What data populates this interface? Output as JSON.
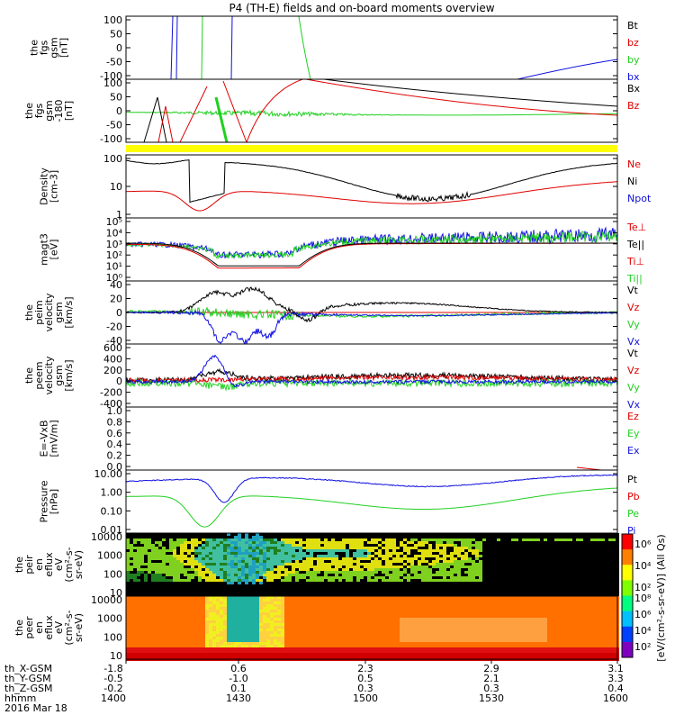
{
  "title": "P4 (TH-E) fields and on-board moments overview",
  "colors": {
    "black": "#000000",
    "red": "#e00000",
    "green": "#20d020",
    "blue": "#1010e0",
    "yellow": "#ffff00",
    "frame": "#000000"
  },
  "panels": [
    {
      "id": "fgs_gsm",
      "ylabel": [
        "the",
        "fgs",
        "gsm",
        "[nT]"
      ],
      "ticks": [
        "100",
        "50",
        "0",
        "-50",
        "-100"
      ],
      "legend": [
        {
          "text": "Bt",
          "color": "black"
        },
        {
          "text": "bz",
          "color": "red"
        },
        {
          "text": "by",
          "color": "green"
        },
        {
          "text": "bx",
          "color": "blue"
        }
      ]
    },
    {
      "id": "fgs_gsm_180",
      "ylabel": [
        "the",
        "fgs",
        "gsm",
        "-180",
        "[nT]"
      ],
      "ticks": [
        "100",
        "50",
        "0",
        "-50",
        "-100"
      ],
      "legend": [
        {
          "text": "Bx",
          "color": "black"
        },
        {
          "text": "Bz",
          "color": "red"
        }
      ]
    },
    {
      "id": "density",
      "ylabel": [
        "Density",
        "[cm-3]"
      ],
      "ticks": [
        "100",
        "10",
        "1"
      ],
      "legend": [
        {
          "text": "Ne",
          "color": "red"
        },
        {
          "text": "Ni",
          "color": "black"
        },
        {
          "text": "Npot",
          "color": "blue"
        }
      ]
    },
    {
      "id": "temp",
      "ylabel": [
        "magt3",
        "[eV]"
      ],
      "ticks": [
        "10⁵",
        "10⁴",
        "10³",
        "10²",
        "10¹",
        "10⁰"
      ],
      "legend": [
        {
          "text": "Te⊥",
          "color": "red"
        },
        {
          "text": "Te||",
          "color": "black"
        },
        {
          "text": "Ti⊥",
          "color": "red"
        },
        {
          "text": "Ti||",
          "color": "green"
        }
      ]
    },
    {
      "id": "peim_vel",
      "ylabel": [
        "the",
        "peim",
        "velocity",
        "gsm",
        "[km/s]"
      ],
      "ticks": [
        "40",
        "20",
        "0",
        "-20",
        "-40"
      ],
      "legend": [
        {
          "text": "Vt",
          "color": "black"
        },
        {
          "text": "Vz",
          "color": "red"
        },
        {
          "text": "Vy",
          "color": "green"
        },
        {
          "text": "Vx",
          "color": "blue"
        }
      ]
    },
    {
      "id": "peem_vel",
      "ylabel": [
        "the",
        "peem",
        "velocity",
        "gsm",
        "[km/s]"
      ],
      "ticks": [
        "600",
        "400",
        "200",
        "0",
        "-200",
        "-400"
      ],
      "legend": [
        {
          "text": "Vt",
          "color": "black"
        },
        {
          "text": "Vz",
          "color": "red"
        },
        {
          "text": "Vy",
          "color": "green"
        },
        {
          "text": "Vx",
          "color": "blue"
        }
      ]
    },
    {
      "id": "efield",
      "ylabel": [
        "E=-VxB",
        "[mV/m]"
      ],
      "ticks": [
        "1.0",
        "0.8",
        "0.6",
        "0.4",
        "0.2",
        "0.0"
      ],
      "legend": [
        {
          "text": "Ez",
          "color": "red"
        },
        {
          "text": "Ey",
          "color": "green"
        },
        {
          "text": "Ex",
          "color": "blue"
        }
      ]
    },
    {
      "id": "pressure",
      "ylabel": [
        "Pressure",
        "[nPa]"
      ],
      "ticks": [
        "10.00",
        "1.00",
        "0.10",
        "0.01"
      ],
      "legend": [
        {
          "text": "Pt",
          "color": "black"
        },
        {
          "text": "Pb",
          "color": "red"
        },
        {
          "text": "Pe",
          "color": "green"
        },
        {
          "text": "Pi",
          "color": "blue"
        }
      ]
    },
    {
      "id": "peir_en",
      "ylabel": [
        "the",
        "peir",
        "en",
        "eflux",
        "eV",
        "(cm²-s-",
        "sr-eV)"
      ],
      "ticks": [
        "10000",
        "1000",
        "100",
        "10"
      ],
      "legend": []
    },
    {
      "id": "peer_en",
      "ylabel": [
        "the",
        "peer",
        "en",
        "eflux",
        "eV",
        "(cm²-s-",
        "sr-eV)"
      ],
      "ticks": [
        "10000",
        "1000",
        "100",
        "10"
      ],
      "legend": []
    }
  ],
  "colorbar": {
    "label": "[eV/(cm²-s-sr-eV)] (All Qs)",
    "ticks_upper": [
      "10⁶",
      "10⁴",
      "10²"
    ],
    "ticks_lower": [
      "10⁸",
      "10⁶",
      "10⁴",
      "10²"
    ]
  },
  "xaxis": {
    "row_labels": [
      "th_X-GSM",
      "th_Y-GSM",
      "th_Z-GSM",
      "hhmm",
      "2016 Mar 18"
    ],
    "columns": [
      {
        "x": "-1.8",
        "y": "-0.5",
        "z": "-0.2",
        "t": "1400"
      },
      {
        "x": "0.6",
        "y": "-1.0",
        "z": "0.1",
        "t": "1430"
      },
      {
        "x": "2.3",
        "y": "0.5",
        "z": "0.3",
        "t": "1500"
      },
      {
        "x": "2.9",
        "y": "2.1",
        "z": "0.3",
        "t": "1530"
      },
      {
        "x": "3.1",
        "y": "3.3",
        "z": "0.4",
        "t": "1600"
      }
    ]
  },
  "chart_data": {
    "type": "line",
    "title": "P4 (TH-E) fields and on-board moments overview",
    "x_range_hhmm": [
      "1400",
      "1600"
    ],
    "panels": [
      {
        "name": "fgs gsm",
        "unit": "nT",
        "ylim": [
          -100,
          100
        ],
        "series": [
          "Bt",
          "bz",
          "by",
          "bx"
        ]
      },
      {
        "name": "fgs gsm -180",
        "unit": "nT",
        "ylim": [
          -120,
          110
        ],
        "series": [
          "Bx",
          "Bz"
        ]
      },
      {
        "name": "Density",
        "unit": "cm-3",
        "scale": "log",
        "ylim": [
          1,
          200
        ],
        "series": [
          "Ne",
          "Ni",
          "Npot"
        ]
      },
      {
        "name": "magt3",
        "unit": "eV",
        "scale": "log",
        "ylim": [
          1,
          100000
        ],
        "series": [
          "Te⊥",
          "Te||",
          "Ti⊥",
          "Ti||"
        ]
      },
      {
        "name": "peim velocity gsm",
        "unit": "km/s",
        "ylim": [
          -40,
          40
        ],
        "series": [
          "Vt",
          "Vz",
          "Vy",
          "Vx"
        ]
      },
      {
        "name": "peem velocity gsm",
        "unit": "km/s",
        "ylim": [
          -400,
          600
        ],
        "series": [
          "Vt",
          "Vz",
          "Vy",
          "Vx"
        ]
      },
      {
        "name": "E=-VxB",
        "unit": "mV/m",
        "ylim": [
          0,
          1
        ],
        "series": [
          "Ez",
          "Ey",
          "Ex"
        ]
      },
      {
        "name": "Pressure",
        "unit": "nPa",
        "scale": "log",
        "ylim": [
          0.005,
          20
        ],
        "series": [
          "Pt",
          "Pb",
          "Pe",
          "Pi"
        ]
      },
      {
        "name": "peir en eflux",
        "type": "heatmap",
        "ylim": [
          10,
          20000
        ]
      },
      {
        "name": "peer en eflux",
        "type": "heatmap",
        "ylim": [
          10,
          20000
        ]
      }
    ]
  }
}
